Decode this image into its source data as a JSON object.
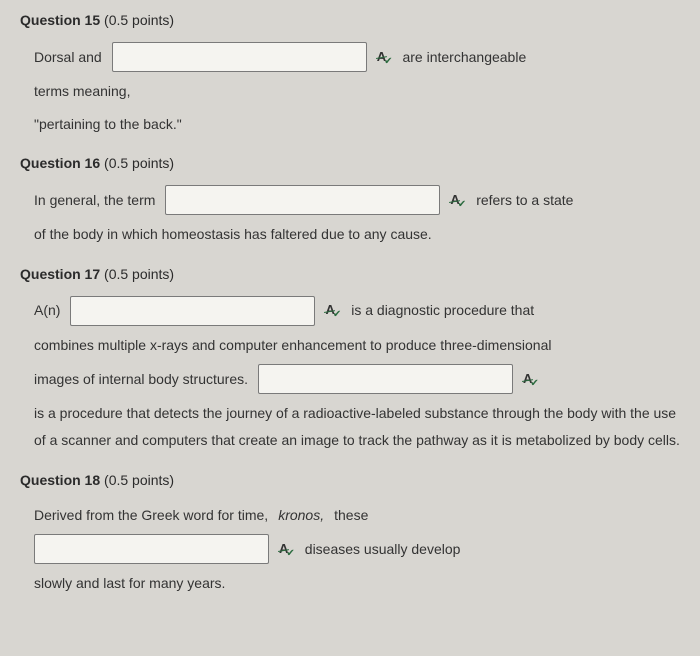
{
  "q15": {
    "number": "Question 15",
    "points": "(0.5 points)",
    "t1": "Dorsal and",
    "t2": "are interchangeable",
    "t3": "terms meaning,",
    "t4": "\"pertaining to the back.\""
  },
  "q16": {
    "number": "Question 16",
    "points": "(0.5 points)",
    "t1": "In general, the term",
    "t2": "refers to a state",
    "t3": "of the body in which homeostasis has faltered due to any cause."
  },
  "q17": {
    "number": "Question 17",
    "points": "(0.5 points)",
    "t1": "A(n)",
    "t2": "is a diagnostic procedure that",
    "t3": "combines multiple x-rays and computer enhancement to produce three-dimensional",
    "t4": "images of internal body structures.",
    "t5": "is a procedure that detects the journey of a radioactive-labeled substance through the body with the use of a scanner and computers that create an image to track the pathway as it is metabolized by body cells."
  },
  "q18": {
    "number": "Question 18",
    "points": "(0.5 points)",
    "t1": "Derived from the Greek word for time,",
    "t1_italic": "kronos,",
    "t1b": "these",
    "t2": "diseases usually develop",
    "t3": "slowly and last for many years."
  },
  "spell": {
    "glyph": "A"
  }
}
